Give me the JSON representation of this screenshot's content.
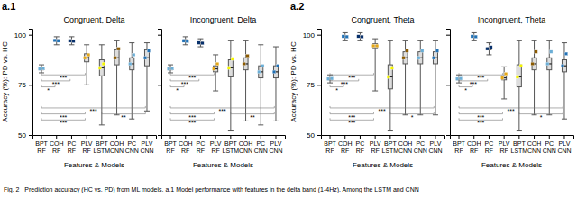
{
  "chart_data": [
    {
      "type": "box",
      "title": "Congruent, Delta",
      "annotations": [
        "a.1",
        "Fig. 2   Prediction accuracy (HC vs. PD) from ML models. a.1 Model performance with features in the delta band (1-4Hz). Among the LSTM and CNN"
      ],
      "categories": [
        "BPT\nRF",
        "COH\nRF",
        "PC\nRF",
        "PLV\nRF",
        "BPT\nLSTM",
        "COH\nCNN",
        "PC\nCNN",
        "PLV\nCNN"
      ],
      "xlabel": "Features & Models",
      "ylabel": "Accuracy (%): PD vs. HC",
      "ylim": [
        50,
        103
      ],
      "yticks": [
        50,
        75,
        100
      ],
      "colors": [
        "#6BAED6",
        "#2171B5",
        "#08306B",
        "#E6A817",
        "#F5F500",
        "#8B5A00",
        "#6BAED6",
        "#2171B5"
      ],
      "medians": [
        83.0,
        97.2,
        97.0,
        88.5,
        83.5,
        88.5,
        85.5,
        88.5
      ],
      "q1": [
        82.5,
        96.8,
        96.6,
        86.5,
        79.5,
        85.0,
        82.5,
        84.5
      ],
      "q3": [
        83.5,
        97.6,
        97.4,
        90.5,
        87.5,
        92.5,
        88.5,
        92.5
      ],
      "whislo": [
        81.0,
        95.0,
        95.0,
        75.0,
        55.0,
        60.0,
        58.0,
        62.0
      ],
      "whishi": [
        85.0,
        99.0,
        99.0,
        95.0,
        95.0,
        97.0,
        96.0,
        96.0
      ],
      "points": [
        [
          83.0,
          83.2
        ],
        [
          97.2,
          97.0
        ],
        [
          97.0,
          96.8
        ],
        [
          88.5,
          90.0
        ],
        [
          83.5,
          85.5
        ],
        [
          88.5,
          93.0
        ],
        [
          85.5,
          90.0
        ],
        [
          88.5,
          92.0
        ]
      ],
      "brackets": [
        {
          "from": 0,
          "to": 1,
          "y": 74.0,
          "text": "*"
        },
        {
          "from": 0,
          "to": 2,
          "y": 77.0,
          "text": "***"
        },
        {
          "from": 0,
          "to": 3,
          "y": 80.0,
          "text": "***"
        },
        {
          "from": 0,
          "to": 7,
          "y": 63.5,
          "text": "***"
        },
        {
          "from": 0,
          "to": 3,
          "y": 60.5,
          "text": "***"
        },
        {
          "from": 0,
          "to": 3,
          "y": 57.5,
          "text": "***"
        },
        {
          "from": 4,
          "to": 7,
          "y": 60.5,
          "text": "**"
        }
      ]
    },
    {
      "type": "box",
      "title": "Incongruent, Delta",
      "categories": [
        "BPT\nRF",
        "COH\nRF",
        "PC\nRF",
        "PLV\nRF",
        "BPT\nLSTM",
        "COH\nCNN",
        "PC\nCNN",
        "PLV\nCNN"
      ],
      "xlabel": "Features & Models",
      "tick_labels": "x",
      "ylim": [
        50,
        103
      ],
      "yticks": [
        50,
        75,
        100
      ],
      "colors": [
        "#6BAED6",
        "#2171B5",
        "#08306B",
        "#E6A817",
        "#F5F500",
        "#8B5A00",
        "#6BAED6",
        "#2171B5"
      ],
      "medians": [
        83.0,
        97.0,
        96.0,
        83.0,
        83.5,
        85.5,
        81.5,
        81.5
      ],
      "q1": [
        82.5,
        96.5,
        95.5,
        81.5,
        79.0,
        82.5,
        78.5,
        78.5
      ],
      "q3": [
        83.5,
        97.5,
        96.5,
        84.5,
        87.5,
        88.5,
        84.5,
        84.5
      ],
      "whislo": [
        81.0,
        95.0,
        94.0,
        72.0,
        52.0,
        57.0,
        55.0,
        57.0
      ],
      "whishi": [
        85.0,
        99.0,
        98.0,
        90.0,
        97.0,
        97.0,
        95.0,
        94.0
      ],
      "points": [
        [
          83.0,
          83.2
        ],
        [
          97.0,
          96.8
        ],
        [
          96.0,
          95.8
        ],
        [
          83.0,
          85.5
        ],
        [
          83.5,
          88.0
        ],
        [
          85.5,
          89.5
        ],
        [
          81.5,
          84.5
        ],
        [
          81.5,
          84.5
        ]
      ],
      "brackets": [
        {
          "from": 0,
          "to": 1,
          "y": 74.0,
          "text": "*"
        },
        {
          "from": 0,
          "to": 2,
          "y": 77.0,
          "text": "***"
        },
        {
          "from": 0,
          "to": 3,
          "y": 80.0,
          "text": "***"
        },
        {
          "from": 0,
          "to": 7,
          "y": 63.5,
          "text": "***"
        },
        {
          "from": 0,
          "to": 3,
          "y": 60.5,
          "text": "***"
        },
        {
          "from": 0,
          "to": 3,
          "y": 57.5,
          "text": "***"
        },
        {
          "from": 4,
          "to": 7,
          "y": 60.5,
          "text": "**"
        }
      ]
    },
    {
      "type": "box",
      "title": "Congruent, Theta",
      "annotations": [
        "a.2"
      ],
      "categories": [
        "BPT\nRF",
        "COH\nRF",
        "PC\nRF",
        "PLV\nRF",
        "BPT\nLSTM",
        "COH\nCNN",
        "PC\nCNN",
        "PLV\nCNN"
      ],
      "xlabel": "Features & Models",
      "ylabel": "Accuracy (%): PD vs. HC",
      "ylim": [
        50,
        103
      ],
      "yticks": [
        50,
        75,
        100
      ],
      "colors": [
        "#6BAED6",
        "#2171B5",
        "#08306B",
        "#E6A817",
        "#F5F500",
        "#8B5A00",
        "#6BAED6",
        "#2171B5"
      ],
      "medians": [
        78.0,
        99.2,
        99.2,
        94.5,
        79.0,
        88.5,
        88.5,
        88.5
      ],
      "q1": [
        77.5,
        98.8,
        98.8,
        93.5,
        73.0,
        85.5,
        85.5,
        85.5
      ],
      "q3": [
        78.5,
        99.6,
        99.6,
        95.5,
        85.0,
        91.5,
        91.5,
        91.5
      ],
      "whislo": [
        76.0,
        97.0,
        97.0,
        72.0,
        52.0,
        60.0,
        60.0,
        60.0
      ],
      "whishi": [
        80.0,
        101.0,
        101.0,
        98.0,
        97.0,
        97.0,
        97.0,
        97.0
      ],
      "points": [
        [
          78.0,
          78.2
        ],
        [
          99.2,
          99.0
        ],
        [
          99.2,
          99.0
        ],
        [
          94.5,
          94.5
        ],
        [
          79.0,
          83.5
        ],
        [
          88.5,
          92.0
        ],
        [
          88.5,
          92.0
        ],
        [
          88.5,
          92.0
        ]
      ],
      "brackets": [
        {
          "from": 0,
          "to": 1,
          "y": 74.0,
          "text": "*"
        },
        {
          "from": 0,
          "to": 2,
          "y": 77.0,
          "text": "***"
        },
        {
          "from": 0,
          "to": 3,
          "y": 80.0,
          "text": "***"
        },
        {
          "from": 0,
          "to": 7,
          "y": 63.5,
          "text": "***"
        },
        {
          "from": 0,
          "to": 3,
          "y": 60.5,
          "text": "***"
        },
        {
          "from": 0,
          "to": 3,
          "y": 57.5,
          "text": "***"
        },
        {
          "from": 4,
          "to": 7,
          "y": 60.5,
          "text": "*"
        }
      ]
    },
    {
      "type": "box",
      "title": "Incongruent, Theta",
      "categories": [
        "BPT\nRF",
        "COH\nRF",
        "PC\nRF",
        "PLV\nRF",
        "BPT\nLSTM",
        "COH\nCNN",
        "PC\nCNN",
        "PLV\nCNN"
      ],
      "xlabel": "Features & Models",
      "tick_labels": "x",
      "ylim": [
        50,
        103
      ],
      "yticks": [
        50,
        75,
        100
      ],
      "colors": [
        "#6BAED6",
        "#2171B5",
        "#08306B",
        "#E6A817",
        "#F5F500",
        "#8B5A00",
        "#6BAED6",
        "#2171B5"
      ],
      "medians": [
        78.0,
        99.2,
        93.0,
        78.5,
        79.0,
        85.5,
        85.5,
        84.5
      ],
      "q1": [
        77.5,
        98.8,
        92.5,
        77.5,
        74.0,
        82.5,
        82.5,
        81.5
      ],
      "q3": [
        78.5,
        99.6,
        93.5,
        79.5,
        85.0,
        88.5,
        88.5,
        87.5
      ],
      "whislo": [
        76.0,
        97.0,
        90.0,
        68.0,
        52.0,
        60.0,
        60.0,
        58.0
      ],
      "whishi": [
        80.0,
        101.0,
        96.0,
        84.0,
        97.0,
        97.0,
        97.0,
        96.0
      ],
      "points": [
        [
          78.0,
          78.2
        ],
        [
          99.2,
          99.0
        ],
        [
          93.0,
          93.8
        ],
        [
          78.5,
          80.5
        ],
        [
          79.0,
          84.5
        ],
        [
          85.5,
          91.5
        ],
        [
          85.5,
          91.5
        ],
        [
          84.5,
          90.5
        ]
      ],
      "brackets": [
        {
          "from": 0,
          "to": 1,
          "y": 74.0,
          "text": "*"
        },
        {
          "from": 0,
          "to": 2,
          "y": 77.0,
          "text": "***"
        },
        {
          "from": 0,
          "to": 3,
          "y": 80.0,
          "text": "***"
        },
        {
          "from": 0,
          "to": 7,
          "y": 63.5,
          "text": "***"
        },
        {
          "from": 0,
          "to": 3,
          "y": 60.5,
          "text": "***"
        },
        {
          "from": 0,
          "to": 3,
          "y": 57.5,
          "text": "***"
        },
        {
          "from": 4,
          "to": 7,
          "y": 60.5,
          "text": "*"
        }
      ]
    }
  ]
}
